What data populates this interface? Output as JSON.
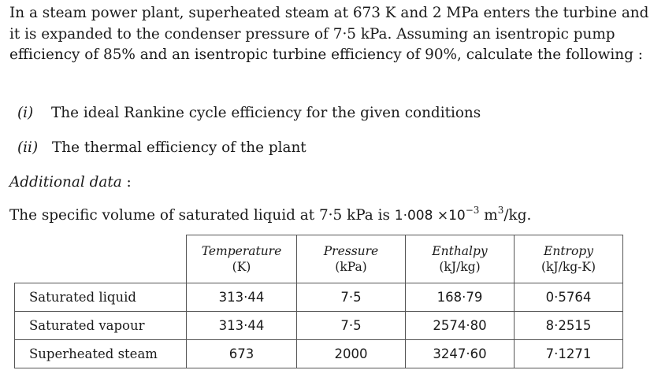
{
  "problem": {
    "text": "In a steam power plant, superheated steam at 673 K and 2 MPa enters the turbine and it is expanded to the condenser pressure of 7·5 kPa. Assuming an isentropic pump efficiency of 85% and an isentropic turbine efficiency of 90%, calculate the following :"
  },
  "items": [
    {
      "num": "(i)",
      "text": "The ideal Rankine cycle efficiency for the given conditions"
    },
    {
      "num": "(ii)",
      "text": "The thermal efficiency of the plant"
    }
  ],
  "additional": {
    "label": "Additional data",
    "colon": ":"
  },
  "specific_volume": {
    "prefix": "The specific volume of saturated liquid at 7·5 kPa is",
    "value": "1·008 ×10",
    "exponent": "−3",
    "unit_base": "m",
    "unit_exp": "3",
    "unit_tail": "/kg."
  },
  "table": {
    "headers": [
      {
        "name": "Temperature",
        "unit": "(K)"
      },
      {
        "name": "Pressure",
        "unit": "(kPa)"
      },
      {
        "name": "Enthalpy",
        "unit": "(kJ/kg)"
      },
      {
        "name": "Entropy",
        "unit": "(kJ/kg-K)"
      }
    ],
    "rows": [
      {
        "label": "Saturated liquid",
        "cells": [
          "313·44",
          "7·5",
          "168·79",
          "0·5764"
        ]
      },
      {
        "label": "Saturated vapour",
        "cells": [
          "313·44",
          "7·5",
          "2574·80",
          "8·2515"
        ]
      },
      {
        "label": "Superheated steam",
        "cells": [
          "673",
          "2000",
          "3247·60",
          "7·1271"
        ]
      }
    ]
  }
}
